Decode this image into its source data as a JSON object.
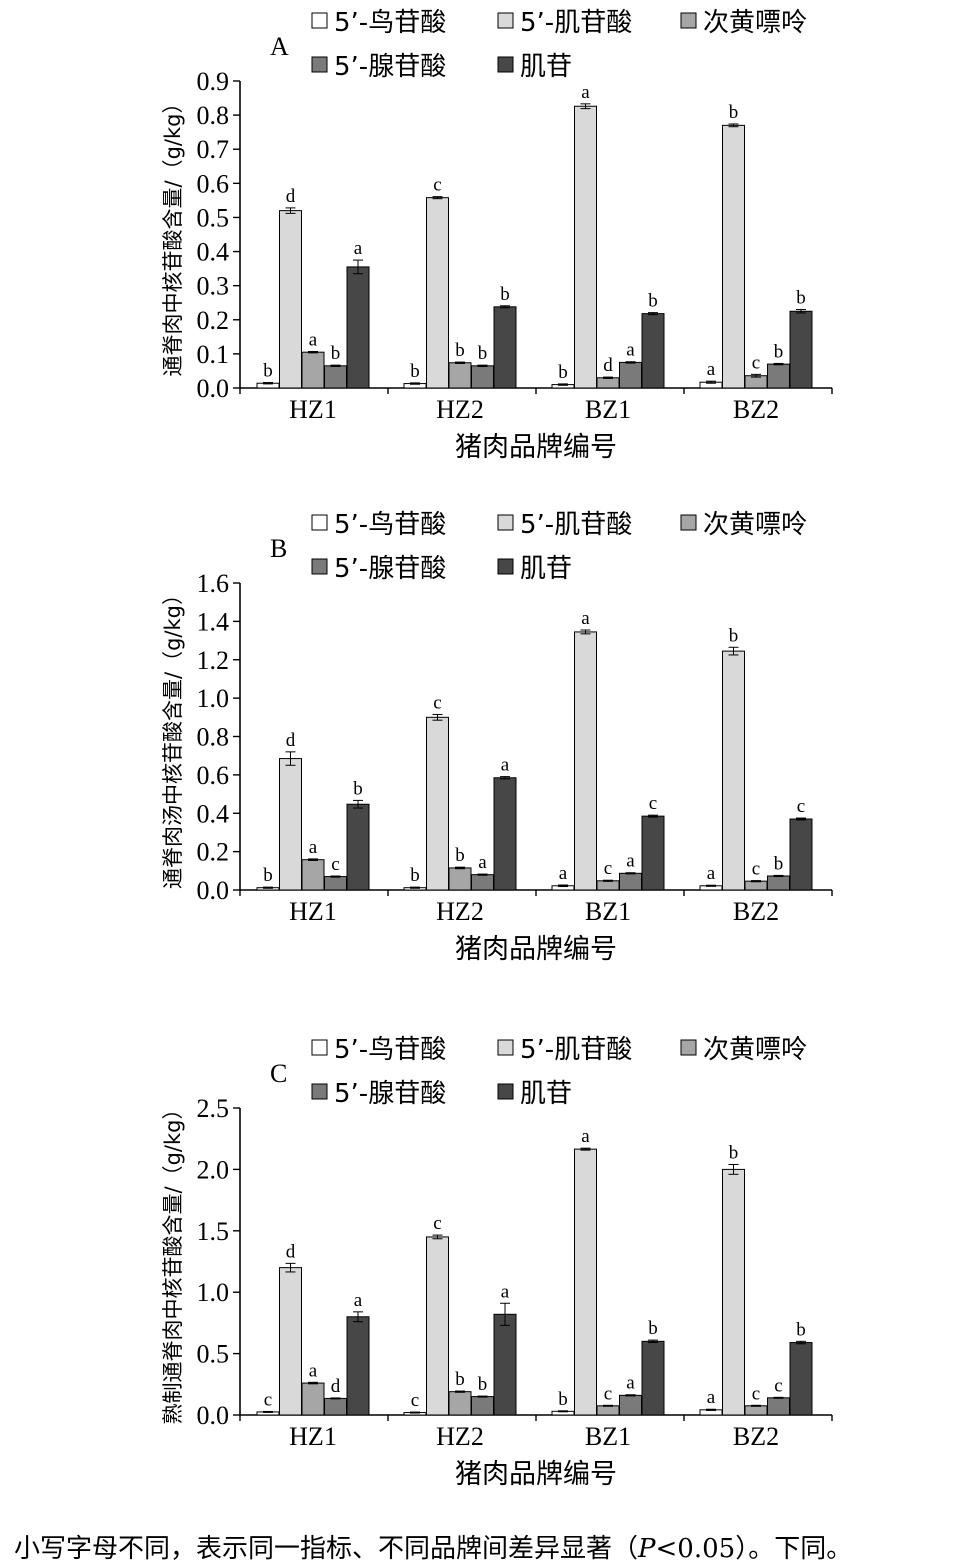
{
  "chart_data": [
    {
      "panel_letter": "A",
      "type": "bar",
      "categories": [
        "HZ1",
        "HZ2",
        "BZ1",
        "BZ2"
      ],
      "xlabel": "猪肉品牌编号",
      "ylabel": "通脊肉中核苷酸含量/（g/kg）",
      "ylim": [
        0,
        0.9
      ],
      "yticks": [
        "0.0",
        "0.1",
        "0.2",
        "0.3",
        "0.4",
        "0.5",
        "0.6",
        "0.7",
        "0.8",
        "0.9"
      ],
      "legend": [
        "5’-鸟苷酸",
        "5’-肌苷酸",
        "次黄嘌呤",
        "5’-腺苷酸",
        "肌苷"
      ],
      "legend_placement": "top",
      "series": [
        {
          "name": "5’-鸟苷酸",
          "color": "#ffffff",
          "values": [
            0.014,
            0.013,
            0.01,
            0.017
          ],
          "errors": [
            0.002,
            0.002,
            0.002,
            0.003
          ],
          "letters": [
            "b",
            "b",
            "b",
            "a"
          ]
        },
        {
          "name": "5’-肌苷酸",
          "color": "#d9d9d9",
          "values": [
            0.52,
            0.558,
            0.826,
            0.77
          ],
          "errors": [
            0.008,
            0.003,
            0.007,
            0.004
          ],
          "letters": [
            "d",
            "c",
            "a",
            "b"
          ]
        },
        {
          "name": "次黄嘌呤",
          "color": "#a6a6a6",
          "values": [
            0.105,
            0.074,
            0.03,
            0.036
          ],
          "errors": [
            0.002,
            0.002,
            0.002,
            0.004
          ],
          "letters": [
            "a",
            "b",
            "d",
            "c"
          ]
        },
        {
          "name": "5’-腺苷酸",
          "color": "#7a7a7a",
          "values": [
            0.065,
            0.065,
            0.075,
            0.07
          ],
          "errors": [
            0.002,
            0.002,
            0.002,
            0.002
          ],
          "letters": [
            "b",
            "b",
            "a",
            "b"
          ]
        },
        {
          "name": "肌苷",
          "color": "#474747",
          "values": [
            0.355,
            0.238,
            0.218,
            0.225
          ],
          "errors": [
            0.02,
            0.003,
            0.003,
            0.005
          ],
          "letters": [
            "a",
            "b",
            "b",
            "b"
          ]
        }
      ]
    },
    {
      "panel_letter": "B",
      "type": "bar",
      "categories": [
        "HZ1",
        "HZ2",
        "BZ1",
        "BZ2"
      ],
      "xlabel": "猪肉品牌编号",
      "ylabel": "通脊肉汤中核苷酸含量/（g/kg）",
      "ylim": [
        0,
        1.6
      ],
      "yticks": [
        "0.0",
        "0.2",
        "0.4",
        "0.6",
        "0.8",
        "1.0",
        "1.2",
        "1.4",
        "1.6"
      ],
      "legend": [
        "5’-鸟苷酸",
        "5’-肌苷酸",
        "次黄嘌呤",
        "5’-腺苷酸",
        "肌苷"
      ],
      "legend_placement": "top",
      "series": [
        {
          "name": "5’-鸟苷酸",
          "color": "#ffffff",
          "values": [
            0.012,
            0.012,
            0.022,
            0.022
          ],
          "errors": [
            0.003,
            0.003,
            0.004,
            0.003
          ],
          "letters": [
            "b",
            "b",
            "a",
            "a"
          ]
        },
        {
          "name": "5’-肌苷酸",
          "color": "#d9d9d9",
          "values": [
            0.685,
            0.9,
            1.345,
            1.245
          ],
          "errors": [
            0.035,
            0.015,
            0.01,
            0.02
          ],
          "letters": [
            "d",
            "c",
            "a",
            "b"
          ]
        },
        {
          "name": "次黄嘌呤",
          "color": "#a6a6a6",
          "values": [
            0.158,
            0.115,
            0.048,
            0.046
          ],
          "errors": [
            0.004,
            0.004,
            0.003,
            0.003
          ],
          "letters": [
            "a",
            "b",
            "c",
            "c"
          ]
        },
        {
          "name": "5’-腺苷酸",
          "color": "#7a7a7a",
          "values": [
            0.07,
            0.08,
            0.087,
            0.073
          ],
          "errors": [
            0.003,
            0.003,
            0.003,
            0.003
          ],
          "letters": [
            "c",
            "a",
            "a",
            "b"
          ]
        },
        {
          "name": "肌苷",
          "color": "#474747",
          "values": [
            0.447,
            0.585,
            0.385,
            0.37
          ],
          "errors": [
            0.02,
            0.006,
            0.005,
            0.005
          ],
          "letters": [
            "b",
            "a",
            "c",
            "c"
          ]
        }
      ]
    },
    {
      "panel_letter": "C",
      "type": "bar",
      "categories": [
        "HZ1",
        "HZ2",
        "BZ1",
        "BZ2"
      ],
      "xlabel": "猪肉品牌编号",
      "ylabel": "熟制通脊肉中核苷酸含量/（g/kg）",
      "ylim": [
        0,
        2.5
      ],
      "yticks": [
        "0.0",
        "0.5",
        "1.0",
        "1.5",
        "2.0",
        "2.5"
      ],
      "legend": [
        "5’-鸟苷酸",
        "5’-肌苷酸",
        "次黄嘌呤",
        "5’-腺苷酸",
        "肌苷"
      ],
      "legend_placement": "top",
      "series": [
        {
          "name": "5’-鸟苷酸",
          "color": "#ffffff",
          "values": [
            0.025,
            0.02,
            0.03,
            0.042
          ],
          "errors": [
            0.004,
            0.004,
            0.004,
            0.005
          ],
          "letters": [
            "c",
            "c",
            "b",
            "a"
          ]
        },
        {
          "name": "5’-肌苷酸",
          "color": "#d9d9d9",
          "values": [
            1.2,
            1.45,
            2.165,
            2.0
          ],
          "errors": [
            0.035,
            0.015,
            0.008,
            0.04
          ],
          "letters": [
            "d",
            "c",
            "a",
            "b"
          ]
        },
        {
          "name": "次黄嘌呤",
          "color": "#a6a6a6",
          "values": [
            0.26,
            0.19,
            0.075,
            0.075
          ],
          "errors": [
            0.006,
            0.005,
            0.004,
            0.004
          ],
          "letters": [
            "a",
            "b",
            "c",
            "c"
          ]
        },
        {
          "name": "5’-腺苷酸",
          "color": "#7a7a7a",
          "values": [
            0.135,
            0.15,
            0.16,
            0.14
          ],
          "errors": [
            0.004,
            0.004,
            0.005,
            0.004
          ],
          "letters": [
            "d",
            "b",
            "a",
            "c"
          ]
        },
        {
          "name": "肌苷",
          "color": "#474747",
          "values": [
            0.8,
            0.82,
            0.6,
            0.59
          ],
          "errors": [
            0.04,
            0.09,
            0.01,
            0.01
          ],
          "letters": [
            "a",
            "a",
            "b",
            "b"
          ]
        }
      ]
    }
  ],
  "footnote": {
    "pre": "小写字母不同，表示同一指标、不同品牌间差异显著（",
    "p": "P",
    "post": "<0.05）。下同。"
  }
}
